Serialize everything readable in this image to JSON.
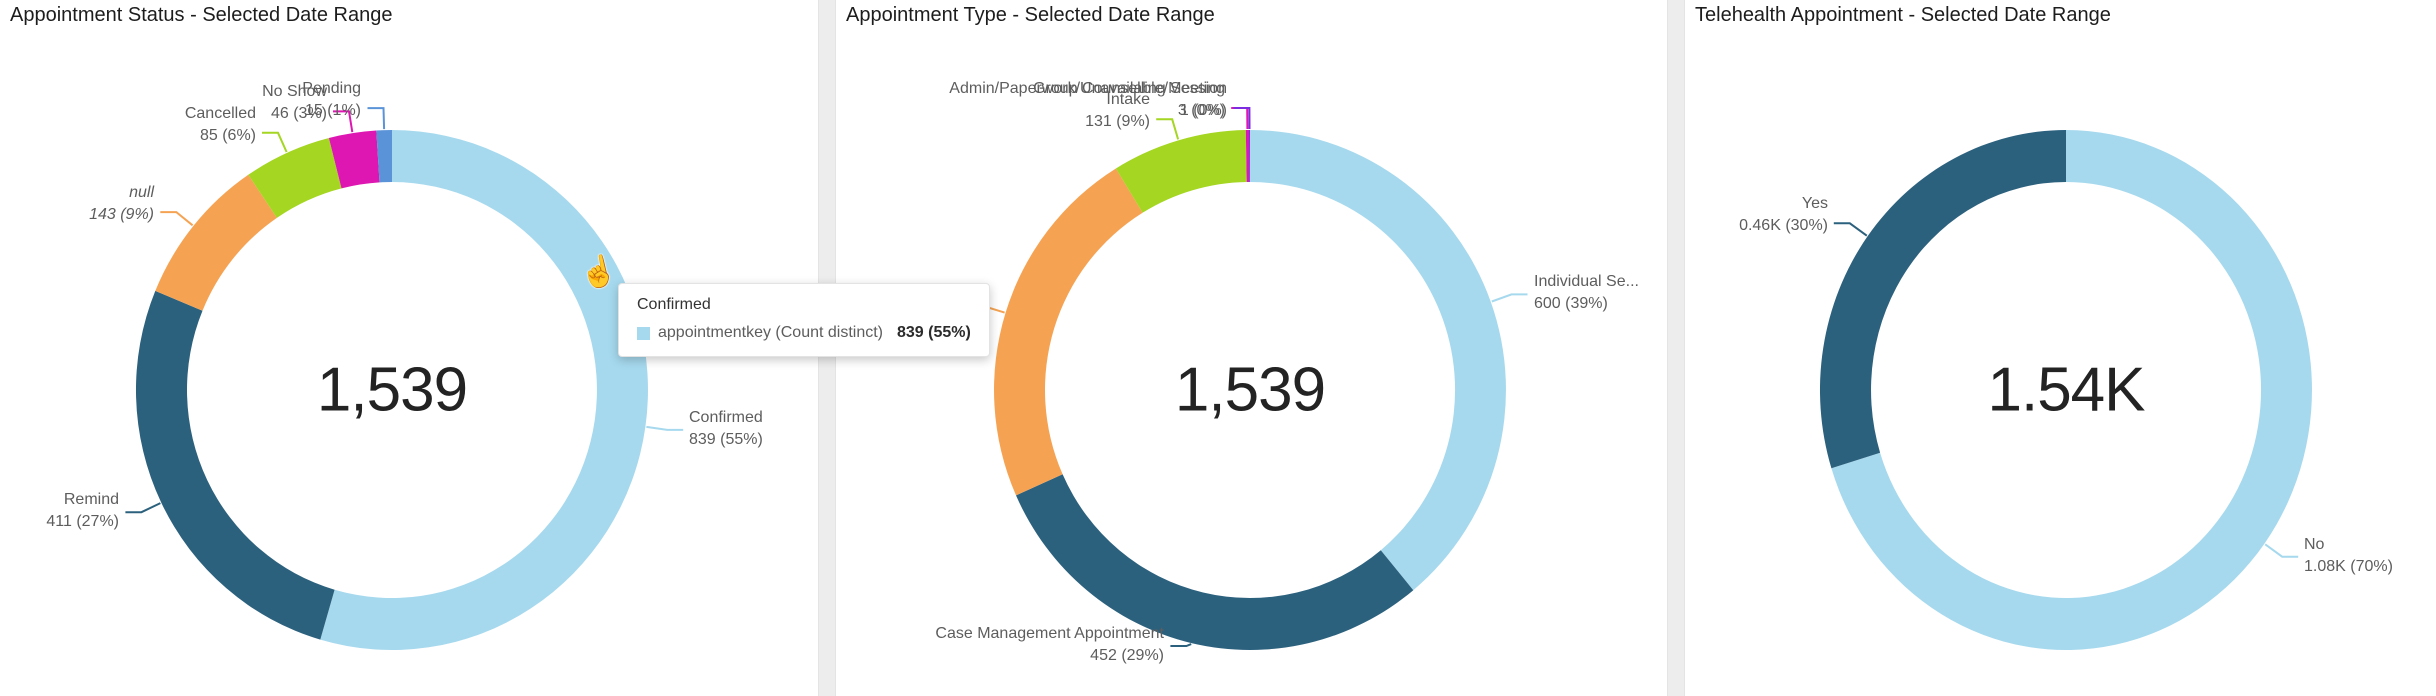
{
  "colors": {
    "lightblue": "#A6D9EE",
    "darkteal": "#2C617E",
    "orange": "#F5A353",
    "green": "#A4D622",
    "magenta": "#DE16B2",
    "blue": "#5A93D8",
    "purple": "#7B2BE0",
    "label_text": "#5d5d5d",
    "title_text": "#1d1d1d",
    "center_text": "#232323"
  },
  "tooltip": {
    "title": "Confirmed",
    "series_label": "appointmentkey (Count distinct)",
    "value": "839 (55%)",
    "swatch_color": "#A6D9EE"
  },
  "cursor": {
    "icon": "hand-pointer"
  },
  "charts": [
    {
      "title": "Appointment Status - Selected Date Range",
      "center_value": "1,539",
      "total": 1539,
      "slices": [
        {
          "label": "Confirmed",
          "value": 839,
          "display": "839 (55%)",
          "color_key": "lightblue"
        },
        {
          "label": "Remind",
          "value": 411,
          "display": "411 (27%)",
          "color_key": "darkteal"
        },
        {
          "label": "null",
          "value": 143,
          "display": "143 (9%)",
          "color_key": "orange",
          "italic": true
        },
        {
          "label": "Cancelled",
          "value": 85,
          "display": "85 (6%)",
          "color_key": "green"
        },
        {
          "label": "No Show",
          "value": 46,
          "display": "46 (3%)",
          "color_key": "magenta"
        },
        {
          "label": "Pending",
          "value": 15,
          "display": "15 (1%)",
          "color_key": "blue"
        }
      ]
    },
    {
      "title": "Appointment Type - Selected Date Range",
      "center_value": "1,539",
      "total": 1539,
      "slices": [
        {
          "label": "Individual Se...",
          "value": 600,
          "display": "600 (39%)",
          "color_key": "lightblue"
        },
        {
          "label": "Case Management Appointment",
          "value": 452,
          "display": "452 (29%)",
          "color_key": "darkteal"
        },
        {
          "label": "",
          "value": 352,
          "display": "",
          "color_key": "orange",
          "label_visible": false
        },
        {
          "label": "Intake",
          "value": 131,
          "display": "131 (9%)",
          "color_key": "green"
        },
        {
          "label": "Admin/Paperwork/Unavailable/Meeting",
          "value": 3,
          "display": "3 (0%)",
          "color_key": "magenta"
        },
        {
          "label": "Group Counselling Session",
          "value": 1,
          "display": "1 (0%)",
          "color_key": "purple"
        }
      ]
    },
    {
      "title": "Telehealth Appointment - Selected Date Range",
      "center_value": "1.54K",
      "total": 1540,
      "slices": [
        {
          "label": "No",
          "value": 1080,
          "display": "1.08K (70%)",
          "color_key": "lightblue"
        },
        {
          "label": "Yes",
          "value": 460,
          "display": "0.46K (30%)",
          "color_key": "darkteal"
        }
      ]
    }
  ],
  "chart_data": [
    {
      "type": "pie",
      "subtype": "donut",
      "title": "Appointment Status - Selected Date Range",
      "center_label": "1,539",
      "categories": [
        "Confirmed",
        "Remind",
        "null",
        "Cancelled",
        "No Show",
        "Pending"
      ],
      "values": [
        839,
        411,
        143,
        85,
        46,
        15
      ],
      "percent_labels": [
        "55%",
        "27%",
        "9%",
        "6%",
        "3%",
        "1%"
      ],
      "legend_position": "none"
    },
    {
      "type": "pie",
      "subtype": "donut",
      "title": "Appointment Type - Selected Date Range",
      "center_label": "1,539",
      "categories": [
        "Individual Se...",
        "Case Management Appointment",
        "",
        "Intake",
        "Admin/Paperwork/Unavailable/Meeting",
        "Group Counselling Session"
      ],
      "values": [
        600,
        452,
        352,
        131,
        3,
        1
      ],
      "percent_labels": [
        "39%",
        "29%",
        "",
        "9%",
        "0%",
        "0%"
      ],
      "legend_position": "none"
    },
    {
      "type": "pie",
      "subtype": "donut",
      "title": "Telehealth Appointment - Selected Date Range",
      "center_label": "1.54K",
      "categories": [
        "No",
        "Yes"
      ],
      "values": [
        1080,
        460
      ],
      "percent_labels": [
        "70%",
        "30%"
      ],
      "legend_position": "none"
    }
  ]
}
